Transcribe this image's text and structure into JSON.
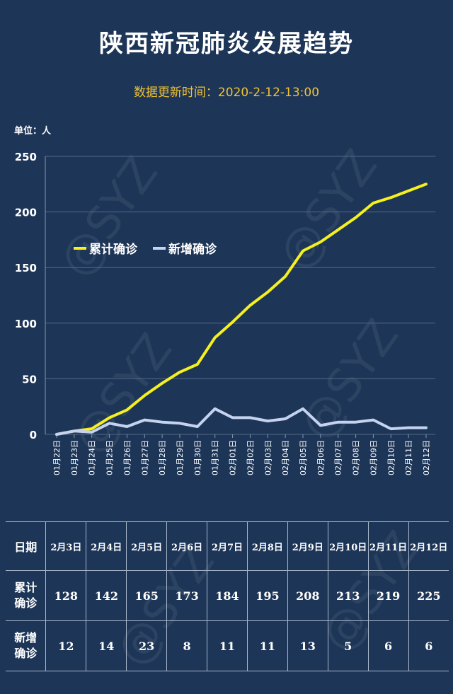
{
  "title": "陕西新冠肺炎发展趋势",
  "subtitle": "数据更新时间：2020-2-12-13:00",
  "unit_label": "单位：人",
  "watermark_text": "@SYZ",
  "chart_data": {
    "type": "line",
    "x": [
      "01月22日",
      "01月23日",
      "01月24日",
      "01月25日",
      "01月26日",
      "01月27日",
      "01月28日",
      "01月29日",
      "01月30日",
      "01月31日",
      "02月01日",
      "02月02日",
      "02月03日",
      "02月04日",
      "02月05日",
      "02月06日",
      "02月07日",
      "02月08日",
      "02月09日",
      "02月10日",
      "02月11日",
      "02月12日"
    ],
    "series": [
      {
        "name": "累计确诊",
        "color": "#f5f01e",
        "values": [
          0,
          3,
          5,
          15,
          22,
          35,
          46,
          56,
          63,
          87,
          101,
          116,
          128,
          142,
          165,
          173,
          184,
          195,
          208,
          213,
          219,
          225
        ]
      },
      {
        "name": "新增确诊",
        "color": "#c5d3ef",
        "values": [
          0,
          3,
          2,
          10,
          7,
          13,
          11,
          10,
          7,
          23,
          15,
          15,
          12,
          14,
          23,
          8,
          11,
          11,
          13,
          5,
          6,
          6
        ]
      }
    ],
    "ylim": [
      0,
      250
    ],
    "yticks": [
      0,
      50,
      100,
      150,
      200,
      250
    ],
    "legend": "top-left",
    "grid": true
  },
  "table": {
    "header_label": "日期",
    "dates": [
      "2月3日",
      "2月4日",
      "2月5日",
      "2月6日",
      "2月7日",
      "2月8日",
      "2月9日",
      "2月10日",
      "2月11日",
      "2月12日"
    ],
    "rows": [
      {
        "label_line1": "累计",
        "label_line2": "确诊",
        "values": [
          "128",
          "142",
          "165",
          "173",
          "184",
          "195",
          "208",
          "213",
          "219",
          "225"
        ]
      },
      {
        "label_line1": "新增",
        "label_line2": "确诊",
        "values": [
          "12",
          "14",
          "23",
          "8",
          "11",
          "11",
          "13",
          "5",
          "6",
          "6"
        ]
      }
    ]
  }
}
